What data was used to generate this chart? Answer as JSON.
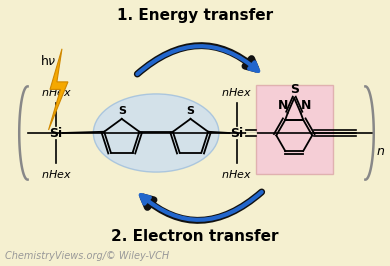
{
  "bg_color": "#f5f0d0",
  "title_energy": "1. Energy transfer",
  "title_electron": "2. Electron transfer",
  "footer": "ChemistryViews.org/© Wiley-VCH",
  "donor_bg": "#c8ddf2",
  "acceptor_bg": "#f5c8d8",
  "arrow_blue": "#2266cc",
  "arrow_dark": "#111111",
  "lightning_color": "#f5a800",
  "lightning_edge": "#d08800",
  "title_fontsize": 11,
  "footer_fontsize": 7,
  "chem_fontsize": 9,
  "nhex_fontsize": 8,
  "n_fontsize": 9
}
